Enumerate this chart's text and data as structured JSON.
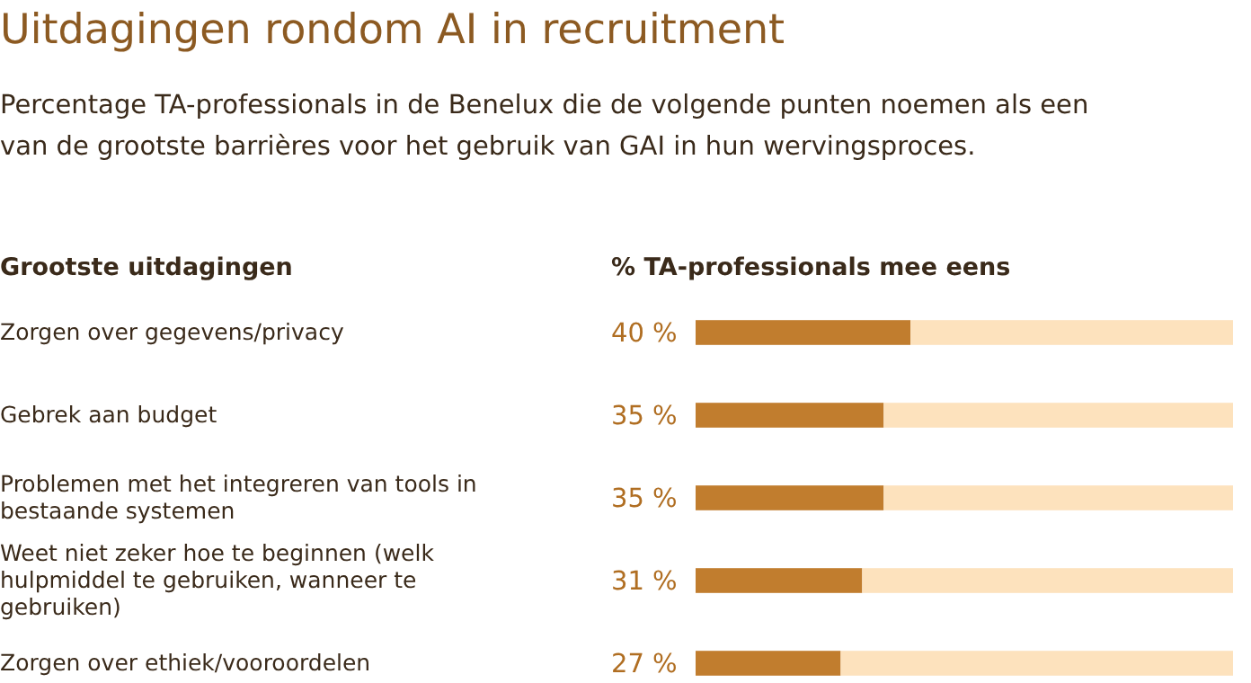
{
  "chart_data": {
    "type": "bar",
    "orientation": "horizontal",
    "stacked": true,
    "title": "Uitdagingen rondom AI in recruitment",
    "subtitle": "Percentage TA-professionals in de Benelux die de volgende punten noemen als een van de grootste barrières voor het gebruik van GAI in hun wervingsproces.",
    "ylabel": "Grootste uitdagingen",
    "xlabel": "% TA-professionals mee eens",
    "categories": [
      "Zorgen over gegevens/privacy",
      "Gebrek aan budget",
      "Problemen met het integreren van tools in bestaande systemen",
      "Weet niet zeker hoe te beginnen (welk hulpmiddel te gebruiken, wanneer te gebruiken)",
      "Zorgen over ethiek/vooroordelen"
    ],
    "series": [
      {
        "color": "#c17d2e",
        "values": [
          40,
          35,
          35,
          31,
          27
        ],
        "value_labels": [
          "40 %",
          "35 %",
          "35 %",
          "31 %",
          "27 %"
        ]
      },
      {
        "color": "#fde2bd",
        "values": [
          60,
          65,
          65,
          69,
          73
        ]
      }
    ],
    "xlim": [
      0,
      100
    ],
    "tick_labels": false
  }
}
